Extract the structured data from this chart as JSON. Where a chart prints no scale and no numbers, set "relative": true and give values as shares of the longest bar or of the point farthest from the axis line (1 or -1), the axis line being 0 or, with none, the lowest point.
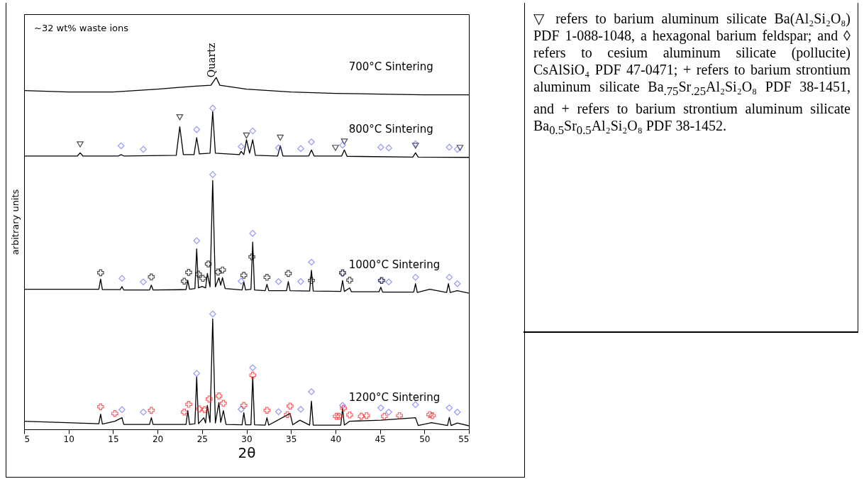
{
  "chart_data": {
    "type": "line",
    "relative": true,
    "xlabel": "2θ",
    "ylabel": "arbitrary units",
    "xlim": [
      5,
      55
    ],
    "xticks": [
      5,
      10,
      15,
      20,
      25,
      30,
      35,
      40,
      45,
      50,
      55
    ],
    "tick_labels": "x",
    "grid": false,
    "line_style": "solid",
    "annotations": [
      "~32 wt% waste ions",
      {
        "text": "Quartz",
        "x": 26.6,
        "y": 1.0
      },
      "▽ refers to barium aluminum silicate Ba(Al₂Si₂O₈) PDF 1-088-1048, a hexagonal barium feldspar; and ◊ refers to cesium aluminum silicate (pollucite) CsAlSiO₄ PDF 47-0471; + refers to barium strontium aluminum silicate Ba$_{.75}$Sr$_{.25}$Al₂Si₂O₈ PDF 38-1451, and + refers to barium strontium aluminum silicate Ba$_{0.5}$Sr$_{0.5}$Al₂Si₂O₈ PDF 38-1452."
    ],
    "series": [
      {
        "name": "700°C Sintering",
        "color": "#000000",
        "x": [
          5,
          10,
          15,
          20,
          24,
          26,
          26.6,
          27,
          30,
          35,
          40,
          45,
          50,
          55
        ],
        "values": [
          0.963,
          0.959,
          0.959,
          0.967,
          0.975,
          0.978,
          1.0,
          0.978,
          0.967,
          0.959,
          0.955,
          0.953,
          0.951,
          0.951
        ]
      },
      {
        "name": "800°C Sintering",
        "color": "#000000",
        "x": [
          5,
          11,
          11.3,
          11.6,
          15.6,
          15.9,
          16.2,
          22.1,
          22.5,
          22.9,
          24.1,
          24.4,
          24.7,
          25.9,
          26.2,
          26.5,
          29.2,
          29.4,
          29.7,
          30.0,
          30.35,
          30.7,
          31.0,
          33.5,
          33.8,
          34.1,
          37.0,
          37.3,
          37.6,
          40.7,
          41.0,
          41.3,
          48.7,
          49.0,
          49.3,
          55
        ],
        "values": [
          0.777,
          0.777,
          0.786,
          0.777,
          0.777,
          0.781,
          0.777,
          0.779,
          0.86,
          0.781,
          0.781,
          0.829,
          0.783,
          0.785,
          0.903,
          0.785,
          0.781,
          0.79,
          0.781,
          0.823,
          0.785,
          0.823,
          0.779,
          0.777,
          0.806,
          0.777,
          0.777,
          0.794,
          0.777,
          0.777,
          0.794,
          0.776,
          0.774,
          0.786,
          0.774,
          0.773
        ]
      },
      {
        "name": "1000°C Sintering",
        "color": "#000000",
        "x": [
          5,
          13.4,
          13.6,
          13.8,
          15.8,
          16.0,
          16.2,
          19.1,
          19.3,
          19.5,
          23.2,
          23.4,
          23.6,
          24.2,
          24.4,
          24.6,
          25.0,
          25.4,
          25.6,
          25.9,
          26.2,
          26.5,
          26.9,
          27.1,
          27.3,
          27.6,
          29.5,
          29.7,
          29.9,
          30.5,
          30.7,
          30.9,
          32.1,
          32.3,
          32.5,
          34.5,
          34.7,
          34.9,
          37.1,
          37.3,
          37.5,
          40.6,
          40.8,
          41.0,
          41.6,
          41.8,
          44.9,
          45.1,
          45.3,
          48.8,
          49.0,
          49.2,
          50.6,
          52.5,
          52.7,
          52.9,
          53.7,
          55
        ],
        "values": [
          0.398,
          0.398,
          0.427,
          0.397,
          0.397,
          0.406,
          0.396,
          0.396,
          0.41,
          0.396,
          0.397,
          0.423,
          0.398,
          0.4,
          0.513,
          0.402,
          0.406,
          0.402,
          0.443,
          0.405,
          0.707,
          0.405,
          0.431,
          0.41,
          0.431,
          0.4,
          0.396,
          0.419,
          0.396,
          0.398,
          0.532,
          0.396,
          0.394,
          0.412,
          0.394,
          0.394,
          0.42,
          0.394,
          0.393,
          0.452,
          0.393,
          0.392,
          0.423,
          0.392,
          0.402,
          0.391,
          0.391,
          0.404,
          0.39,
          0.39,
          0.414,
          0.389,
          0.398,
          0.389,
          0.414,
          0.389,
          0.394,
          0.387
        ]
      },
      {
        "name": "1200°C Sintering",
        "color": "#000000",
        "x": [
          5,
          13.4,
          13.6,
          13.8,
          15.2,
          16.0,
          16.2,
          19.1,
          19.3,
          19.5,
          23.2,
          23.4,
          23.6,
          24.2,
          24.4,
          24.6,
          25.2,
          25.4,
          25.6,
          25.9,
          26.2,
          26.5,
          26.9,
          27.1,
          27.4,
          27.7,
          29.5,
          29.7,
          29.9,
          30.5,
          30.7,
          30.9,
          32.1,
          32.3,
          32.5,
          34.9,
          35.2,
          36.0,
          37.1,
          37.3,
          37.5,
          40.6,
          40.8,
          41.0,
          41.6,
          45.1,
          49.0,
          49.3,
          50.8,
          52.6,
          52.8,
          53.0,
          53.7,
          55
        ],
        "values": [
          0.023,
          0.016,
          0.043,
          0.015,
          0.023,
          0.033,
          0.014,
          0.014,
          0.033,
          0.014,
          0.014,
          0.053,
          0.014,
          0.016,
          0.149,
          0.016,
          0.033,
          0.018,
          0.068,
          0.02,
          0.314,
          0.018,
          0.076,
          0.02,
          0.053,
          0.014,
          0.013,
          0.047,
          0.013,
          0.013,
          0.149,
          0.013,
          0.012,
          0.033,
          0.012,
          0.045,
          0.013,
          0.026,
          0.012,
          0.08,
          0.012,
          0.012,
          0.06,
          0.012,
          0.023,
          0.026,
          0.033,
          0.011,
          0.019,
          0.011,
          0.034,
          0.011,
          0.018,
          0.01
        ]
      },
      {
        "type": "scatter",
        "marker": "triangle",
        "color": "#000000",
        "x": [
          11.3,
          22.5,
          30.0,
          33.8,
          40.0,
          41.0,
          49.0,
          54.0
        ],
        "values": [
          0.81,
          0.887,
          0.835,
          0.829,
          0.8,
          0.818,
          0.806,
          0.8
        ]
      },
      {
        "type": "scatter",
        "marker": "diamond",
        "color": "#6b6bff",
        "x": [
          15.9,
          18.4,
          24.4,
          26.2,
          29.4,
          30.7,
          33.6,
          36.1,
          37.3,
          40.8,
          45.1,
          46.0,
          49.0,
          52.8,
          53.7
        ],
        "values": [
          0.806,
          0.796,
          0.852,
          0.913,
          0.804,
          0.848,
          0.8,
          0.798,
          0.817,
          0.808,
          0.802,
          0.8,
          0.812,
          0.802,
          0.796
        ]
      },
      {
        "type": "scatter",
        "marker": "diamond",
        "color": "#6b6bff",
        "x": [
          16.0,
          18.4,
          24.4,
          26.2,
          29.4,
          30.7,
          33.6,
          36.1,
          37.3,
          40.8,
          45.1,
          46.0,
          49.0,
          52.8,
          53.7
        ],
        "values": [
          0.429,
          0.419,
          0.536,
          0.724,
          0.421,
          0.557,
          0.42,
          0.42,
          0.475,
          0.443,
          0.423,
          0.419,
          0.432,
          0.432,
          0.414
        ]
      },
      {
        "type": "scatter",
        "marker": "cross",
        "color": "#000000",
        "x": [
          13.6,
          19.3,
          23.0,
          23.5,
          24.6,
          25.1,
          25.7,
          26.8,
          27.3,
          29.7,
          30.6,
          32.3,
          34.7,
          37.3,
          40.8,
          41.6,
          45.2
        ],
        "values": [
          0.445,
          0.433,
          0.421,
          0.446,
          0.441,
          0.429,
          0.47,
          0.447,
          0.453,
          0.438,
          0.49,
          0.432,
          0.443,
          0.423,
          0.445,
          0.424,
          0.423
        ]
      },
      {
        "type": "scatter",
        "marker": "diamond",
        "color": "#6b6bff",
        "x": [
          16.0,
          18.4,
          24.4,
          26.2,
          29.4,
          30.7,
          33.6,
          36.1,
          37.3,
          40.8,
          45.1,
          46.0,
          49.0,
          52.8,
          53.7
        ],
        "values": [
          0.056,
          0.049,
          0.159,
          0.328,
          0.057,
          0.175,
          0.05,
          0.057,
          0.107,
          0.068,
          0.061,
          0.049,
          0.07,
          0.061,
          0.049
        ]
      },
      {
        "type": "scatter",
        "marker": "cross",
        "color": "#ff2020",
        "x": [
          13.6,
          15.2,
          19.3,
          23.0,
          23.5,
          24.7,
          25.3,
          25.8,
          26.9,
          27.4,
          29.7,
          30.7,
          32.3,
          34.6,
          34.9,
          40.1,
          40.4,
          40.9,
          41.6,
          42.9,
          43.5,
          45.5,
          47.2,
          50.6,
          50.9
        ],
        "values": [
          0.064,
          0.045,
          0.054,
          0.049,
          0.071,
          0.058,
          0.056,
          0.086,
          0.095,
          0.074,
          0.068,
          0.154,
          0.054,
          0.042,
          0.066,
          0.037,
          0.037,
          0.06,
          0.041,
          0.037,
          0.039,
          0.037,
          0.039,
          0.042,
          0.039
        ]
      }
    ]
  }
}
